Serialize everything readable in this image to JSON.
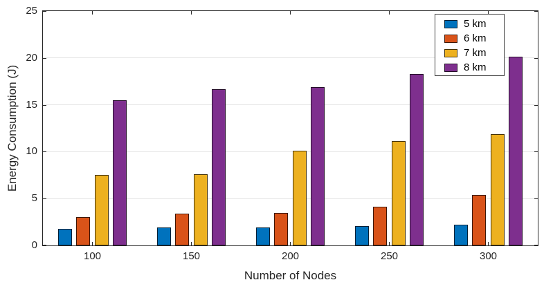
{
  "chart_data": {
    "type": "bar",
    "title": "",
    "xlabel": "Number of Nodes",
    "ylabel": "Energy Consumption (J)",
    "categories": [
      "100",
      "150",
      "200",
      "250",
      "300"
    ],
    "series": [
      {
        "name": "5 km",
        "color": "#0072BD",
        "values": [
          1.8,
          1.9,
          1.95,
          2.05,
          2.2
        ]
      },
      {
        "name": "6 km",
        "color": "#D95319",
        "values": [
          3.0,
          3.4,
          3.45,
          4.15,
          5.4
        ]
      },
      {
        "name": "7 km",
        "color": "#EDB120",
        "values": [
          7.5,
          7.6,
          10.1,
          11.1,
          11.9
        ]
      },
      {
        "name": "8 km",
        "color": "#7E2F8E",
        "values": [
          15.5,
          16.7,
          16.9,
          18.3,
          20.1
        ]
      }
    ],
    "ylim": [
      0,
      25
    ],
    "yticks": [
      0,
      5,
      10,
      15,
      20,
      25
    ],
    "grid": "horizontal",
    "legend_position": "top-right",
    "axis_color": "#262626",
    "grid_color": "#e6e6e6",
    "background": "#ffffff"
  }
}
